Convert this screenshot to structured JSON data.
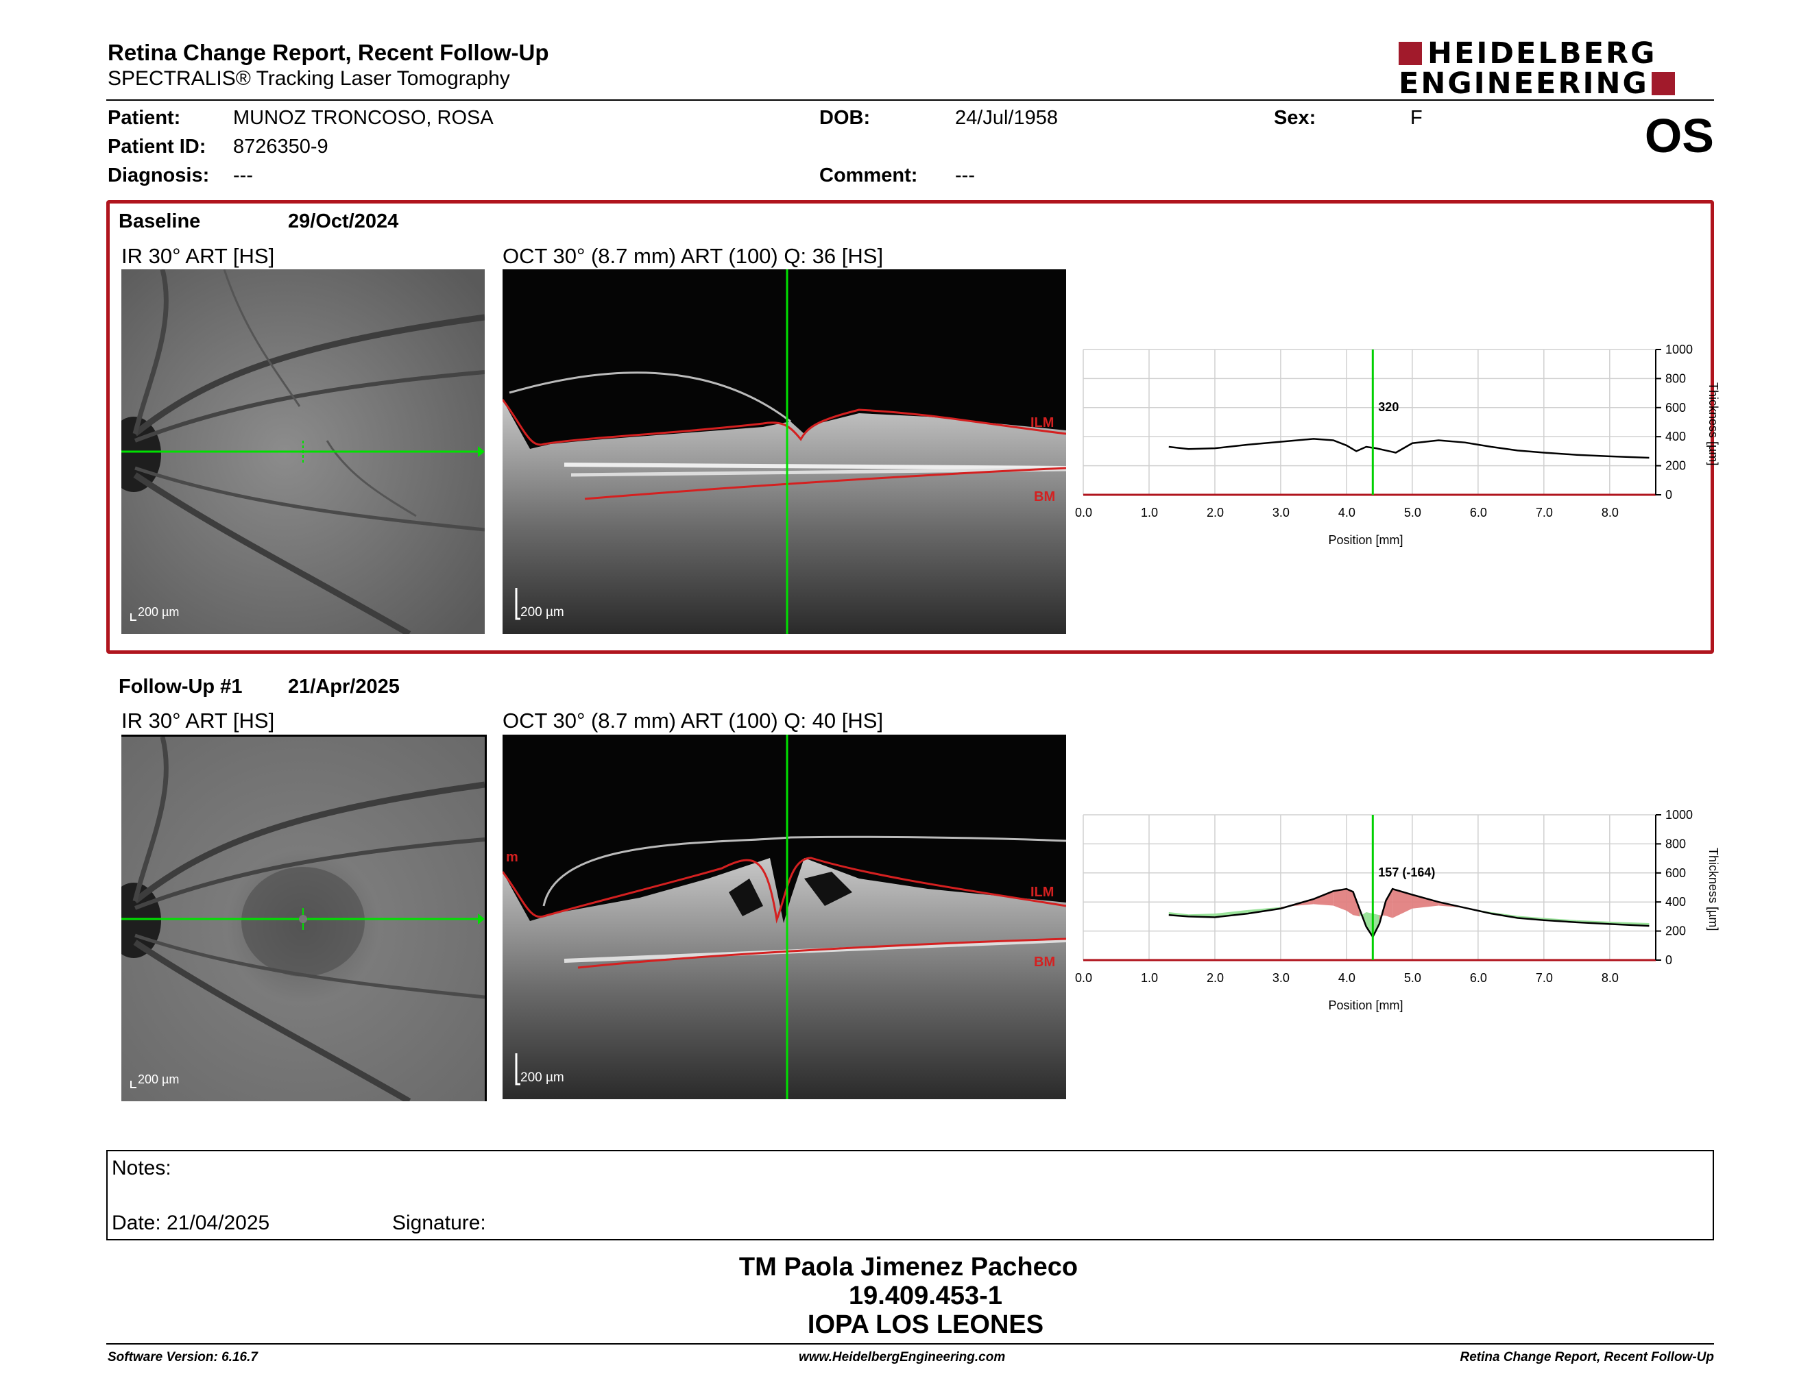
{
  "report": {
    "title": "Retina Change Report, Recent Follow-Up",
    "subtitle": "SPECTRALIS® Tracking Laser Tomography"
  },
  "logo": {
    "line1": "HEIDELBERG",
    "line2": "ENGINEERING",
    "color": "#a11a2b"
  },
  "patient": {
    "patient_label": "Patient:",
    "patient_value": "MUNOZ TRONCOSO, ROSA",
    "id_label": "Patient ID:",
    "id_value": "8726350-9",
    "diagnosis_label": "Diagnosis:",
    "diagnosis_value": "---",
    "dob_label": "DOB:",
    "dob_value": "24/Jul/1958",
    "comment_label": "Comment:",
    "comment_value": "---",
    "sex_label": "Sex:",
    "sex_value": "F",
    "eye": "OS"
  },
  "baseline": {
    "label": "Baseline",
    "date": "29/Oct/2024",
    "ir_caption": "IR 30° ART [HS]",
    "oct_caption": "OCT 30° (8.7 mm) ART (100) Q: 36 [HS]",
    "scale_ir": "200 µm",
    "scale_oct": "200 µm",
    "layer_ilm": "ILM",
    "layer_bm": "BM"
  },
  "followup": {
    "label": "Follow-Up #1",
    "date": "21/Apr/2025",
    "ir_caption": "IR 30° ART [HS]",
    "oct_caption": "OCT 30° (8.7 mm) ART (100) Q: 40 [HS]",
    "scale_ir": "200 µm",
    "scale_oct": "200 µm",
    "layer_ilm": "ILM",
    "layer_bm": "BM",
    "marker_m": "m"
  },
  "chart_data": [
    {
      "type": "line",
      "xlabel": "Position [mm]",
      "ylabel": "Thickness [µm]",
      "xlim": [
        0,
        8.7
      ],
      "ylim": [
        0,
        1000
      ],
      "xticks": [
        "0.0",
        "1.0",
        "2.0",
        "3.0",
        "4.0",
        "5.0",
        "6.0",
        "7.0",
        "8.0"
      ],
      "yticks": [
        "0",
        "200",
        "400",
        "600",
        "800",
        "1000"
      ],
      "cursor_x": 4.4,
      "cursor_label": "320",
      "x": [
        1.3,
        1.6,
        2.0,
        2.5,
        3.0,
        3.5,
        3.8,
        4.0,
        4.15,
        4.3,
        4.45,
        4.6,
        4.75,
        5.0,
        5.4,
        5.8,
        6.2,
        6.6,
        7.0,
        7.5,
        8.0,
        8.6
      ],
      "values": [
        330,
        315,
        320,
        345,
        365,
        385,
        375,
        340,
        300,
        330,
        320,
        305,
        290,
        355,
        375,
        360,
        330,
        305,
        290,
        275,
        265,
        255
      ]
    },
    {
      "type": "line",
      "xlabel": "Position [mm]",
      "ylabel": "Thickness [µm]",
      "xlim": [
        0,
        8.7
      ],
      "ylim": [
        0,
        1000
      ],
      "xticks": [
        "0.0",
        "1.0",
        "2.0",
        "3.0",
        "4.0",
        "5.0",
        "6.0",
        "7.0",
        "8.0"
      ],
      "yticks": [
        "0",
        "200",
        "400",
        "600",
        "800",
        "1000"
      ],
      "cursor_x": 4.4,
      "cursor_label": "157 (-164)",
      "x": [
        1.3,
        1.6,
        2.0,
        2.5,
        3.0,
        3.5,
        3.8,
        4.0,
        4.1,
        4.2,
        4.3,
        4.4,
        4.5,
        4.6,
        4.7,
        5.0,
        5.4,
        5.8,
        6.2,
        6.6,
        7.0,
        7.5,
        8.0,
        8.6
      ],
      "values": [
        310,
        300,
        295,
        320,
        355,
        420,
        475,
        490,
        470,
        350,
        230,
        160,
        250,
        410,
        490,
        450,
        400,
        360,
        320,
        290,
        275,
        260,
        248,
        235
      ],
      "baseline_values": [
        330,
        315,
        320,
        345,
        365,
        385,
        375,
        340,
        310,
        300,
        330,
        320,
        310,
        305,
        290,
        355,
        375,
        360,
        330,
        305,
        290,
        275,
        265,
        255
      ],
      "fill_increase": "#e07a7a",
      "fill_decrease": "#8fe08f"
    }
  ],
  "notes": {
    "notes_label": "Notes:",
    "date_label": "Date: 21/04/2025",
    "signature_label": "Signature:"
  },
  "signer": {
    "name": "TM Paola Jimenez Pacheco",
    "rut": "19.409.453-1",
    "institution": "IOPA LOS LEONES"
  },
  "footer": {
    "software": "Software Version: 6.16.7",
    "website": "www.HeidelbergEngineering.com",
    "report_name": "Retina Change Report, Recent Follow-Up"
  }
}
